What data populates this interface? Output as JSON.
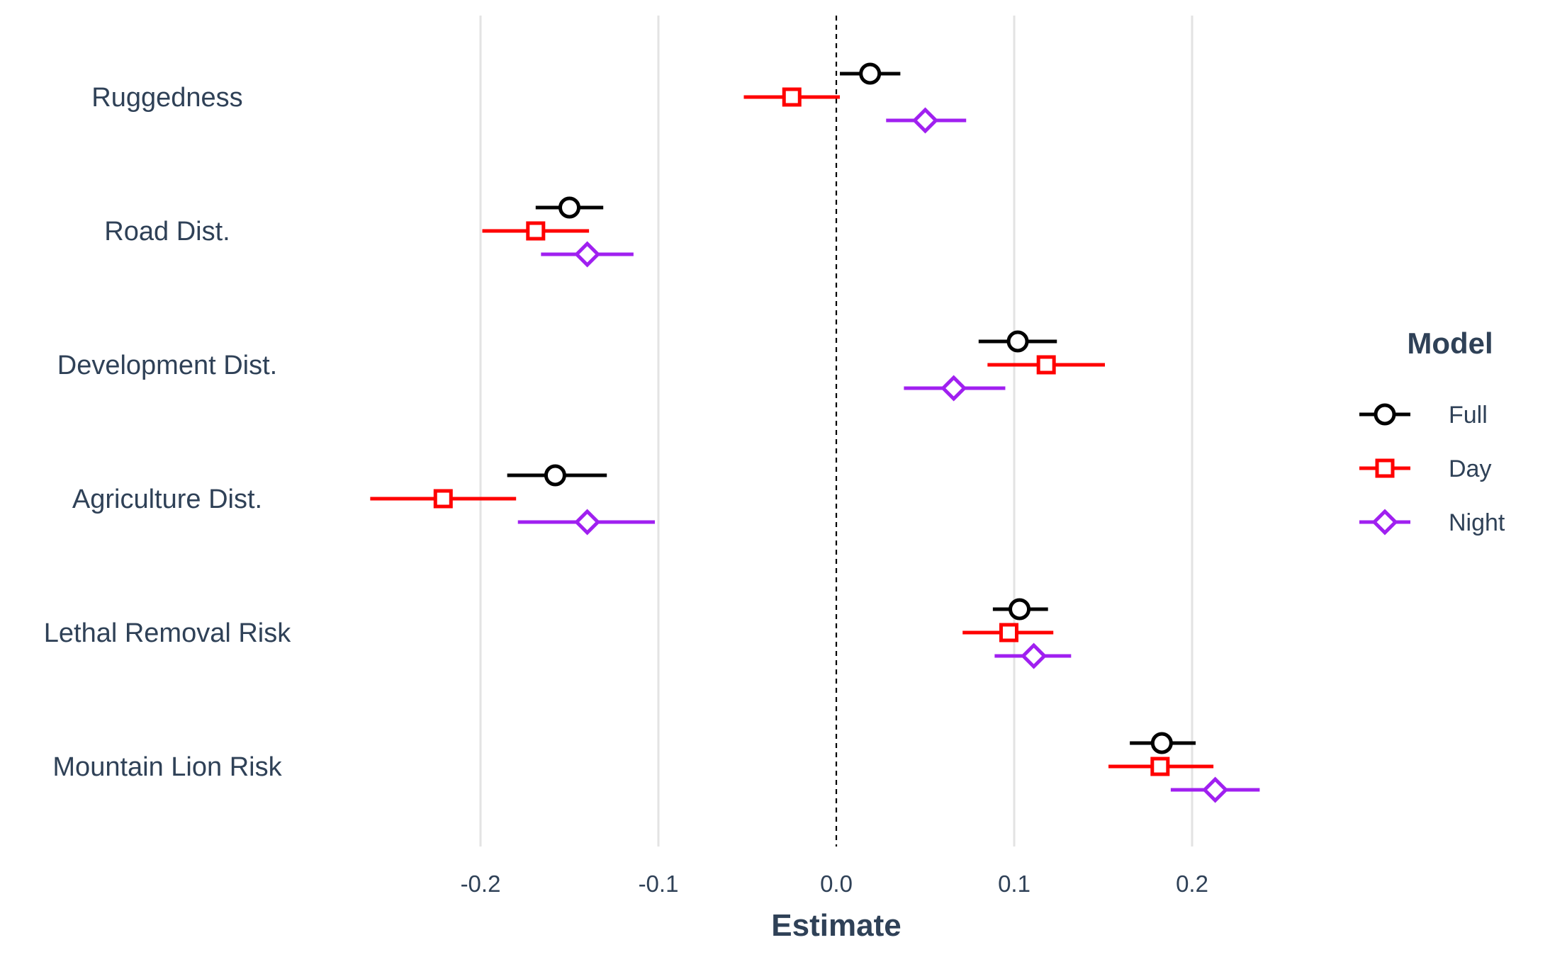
{
  "chart_data": {
    "type": "scatter",
    "subtype": "coefficient-plot-with-intervals",
    "title": "",
    "xlabel": "Estimate",
    "ylabel": "",
    "xlim": [
      -0.272,
      0.302
    ],
    "x_ticks": [
      -0.2,
      -0.1,
      0.0,
      0.1,
      0.2
    ],
    "x_tick_labels": [
      "-0.2",
      "-0.1",
      "0.0",
      "0.1",
      "0.2"
    ],
    "reference_line": 0.0,
    "grid": "vertical major lines",
    "categories": [
      "Ruggedness",
      "Road Dist.",
      "Development Dist.",
      "Agriculture Dist.",
      "Lethal Removal Risk",
      "Mountain Lion Risk"
    ],
    "legend": {
      "title": "Model",
      "position": "right"
    },
    "series": [
      {
        "name": "Full",
        "color": "#000000",
        "marker": "circle",
        "estimates": [
          0.019,
          -0.15,
          0.102,
          -0.158,
          0.103,
          0.183
        ],
        "lower": [
          0.002,
          -0.169,
          0.08,
          -0.185,
          0.088,
          0.165
        ],
        "upper": [
          0.036,
          -0.131,
          0.124,
          -0.129,
          0.119,
          0.202
        ]
      },
      {
        "name": "Day",
        "color": "#ff0000",
        "marker": "square",
        "estimates": [
          -0.025,
          -0.169,
          0.118,
          -0.221,
          0.097,
          0.182
        ],
        "lower": [
          -0.052,
          -0.199,
          0.085,
          -0.262,
          0.071,
          0.153
        ],
        "upper": [
          0.002,
          -0.139,
          0.151,
          -0.18,
          0.122,
          0.212
        ]
      },
      {
        "name": "Night",
        "color": "#a020f0",
        "marker": "diamond",
        "estimates": [
          0.05,
          -0.14,
          0.066,
          -0.14,
          0.111,
          0.213
        ],
        "lower": [
          0.028,
          -0.166,
          0.038,
          -0.179,
          0.089,
          0.188
        ],
        "upper": [
          0.073,
          -0.114,
          0.095,
          -0.102,
          0.132,
          0.238
        ]
      }
    ]
  }
}
